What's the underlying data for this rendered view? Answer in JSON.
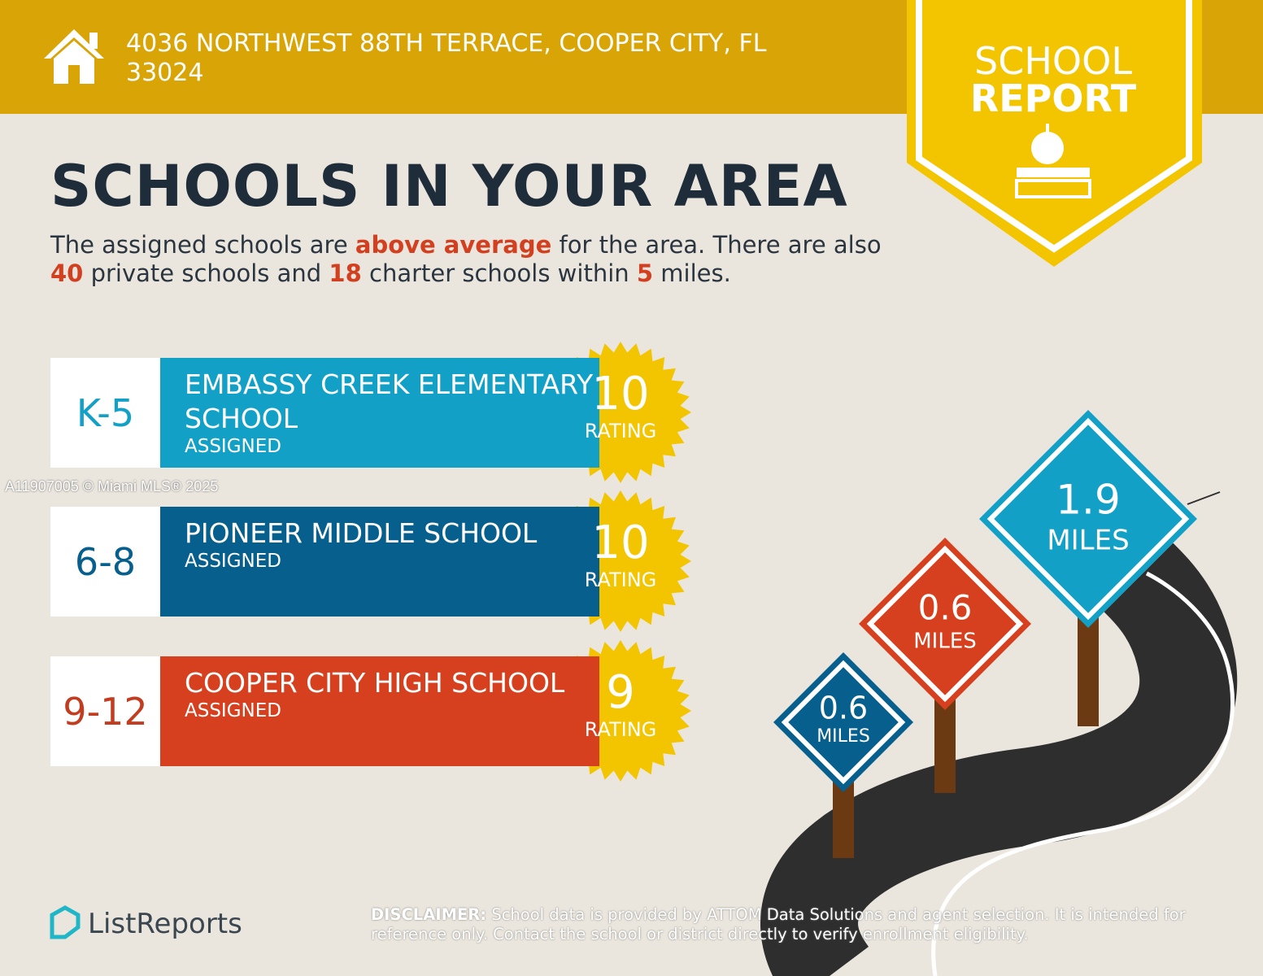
{
  "header": {
    "address": "4036 NORTHWEST 88TH TERRACE, COOPER CITY, FL 33024"
  },
  "badge": {
    "line_1": "SCHOOL",
    "line_2": "REPORT"
  },
  "heading": "SCHOOLS IN YOUR AREA",
  "summary": [
    {
      "text": "The assigned schools are ",
      "bold": false
    },
    {
      "text": "above average",
      "bold": true
    },
    {
      "text": " for the area. There are also ",
      "bold": false
    },
    {
      "text": "40",
      "bold": true
    },
    {
      "text": " private schools and ",
      "bold": false
    },
    {
      "text": "18",
      "bold": true
    },
    {
      "text": " charter schools within ",
      "bold": false
    },
    {
      "text": "5",
      "bold": true
    },
    {
      "text": " miles.",
      "bold": false
    }
  ],
  "schools": [
    {
      "grades": "K-5",
      "name": "EMBASSY CREEK ELEMENTARY SCHOOL",
      "status": "ASSIGNED",
      "rating": 10,
      "rating_label": "RATING"
    },
    {
      "grades": "6-8",
      "name": "PIONEER MIDDLE SCHOOL",
      "status": "ASSIGNED",
      "rating": 10,
      "rating_label": "RATING"
    },
    {
      "grades": "9-12",
      "name": "COOPER CITY HIGH SCHOOL",
      "status": "ASSIGNED",
      "rating": 9,
      "rating_label": "RATING"
    }
  ],
  "watermark": "A11907005 © Miami MLS® 2025",
  "signs": [
    {
      "distance": 0.6,
      "unit": "MILES"
    },
    {
      "distance": 0.6,
      "unit": "MILES"
    },
    {
      "distance": 1.9,
      "unit": "MILES"
    }
  ],
  "footer": {
    "brand": "ListReports",
    "disclaimer_label": "DISCLAIMER:",
    "disclaimer": "School data is provided by ATTOM Data Solutions and agent selection. It is intended for reference only. Contact the school or district directly to verify enrollment eligibility."
  }
}
